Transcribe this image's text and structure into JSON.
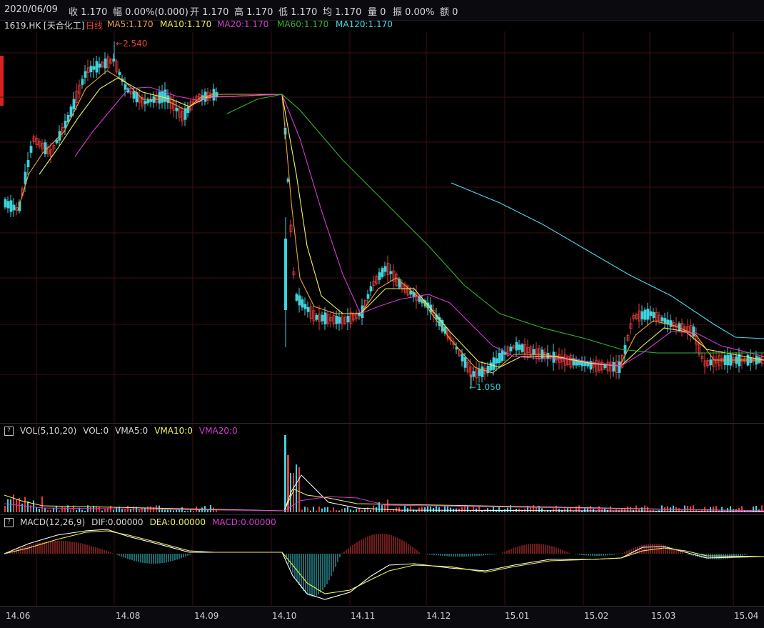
{
  "header": {
    "date": "2020/06/09",
    "close": "收 1.170",
    "change": "幅 0.00%(0.000)",
    "open": "开 1.170",
    "high": "高 1.170",
    "low": "低 1.170",
    "avg": "均 1.170",
    "volume": "量 0",
    "amplitude": "振 0.00%",
    "amount": "额 0"
  },
  "ma_legend": {
    "symbol": "1619.HK [天合化工]",
    "period": "日线",
    "ma5": "MA5:1.170",
    "ma10": "MA10:1.170",
    "ma20": "MA20:1.170",
    "ma60": "MA60:1.170",
    "ma120": "MA120:1.170"
  },
  "price_labels": {
    "high": "2.540",
    "low": "1.050"
  },
  "vol_legend": {
    "help": "?",
    "name": "VOL(5,10,20)",
    "vol": "VOL:0",
    "vma5": "VMA5:0",
    "vma10": "VMA10:0",
    "vma20": "VMA20:0"
  },
  "macd_legend": {
    "help": "?",
    "name": "MACD(12,26,9)",
    "dif": "DIF:0.00000",
    "dea": "DEA:0.00000",
    "macd": "MACD:0.00000"
  },
  "xaxis": [
    "14.06",
    "14.08",
    "14.09",
    "14.10",
    "14.11",
    "14.12",
    "15.01",
    "15.02",
    "15.03",
    "15.04"
  ],
  "colors": {
    "up": "#e23a3a",
    "down": "#3fd2dc",
    "ma5": "#f0a23a",
    "ma10": "#f2f25a",
    "ma20": "#d43bd4",
    "ma60": "#2fb52f",
    "ma120": "#4fd6e6",
    "grid": "#3a0f12",
    "text": "#d8d8d8"
  }
}
